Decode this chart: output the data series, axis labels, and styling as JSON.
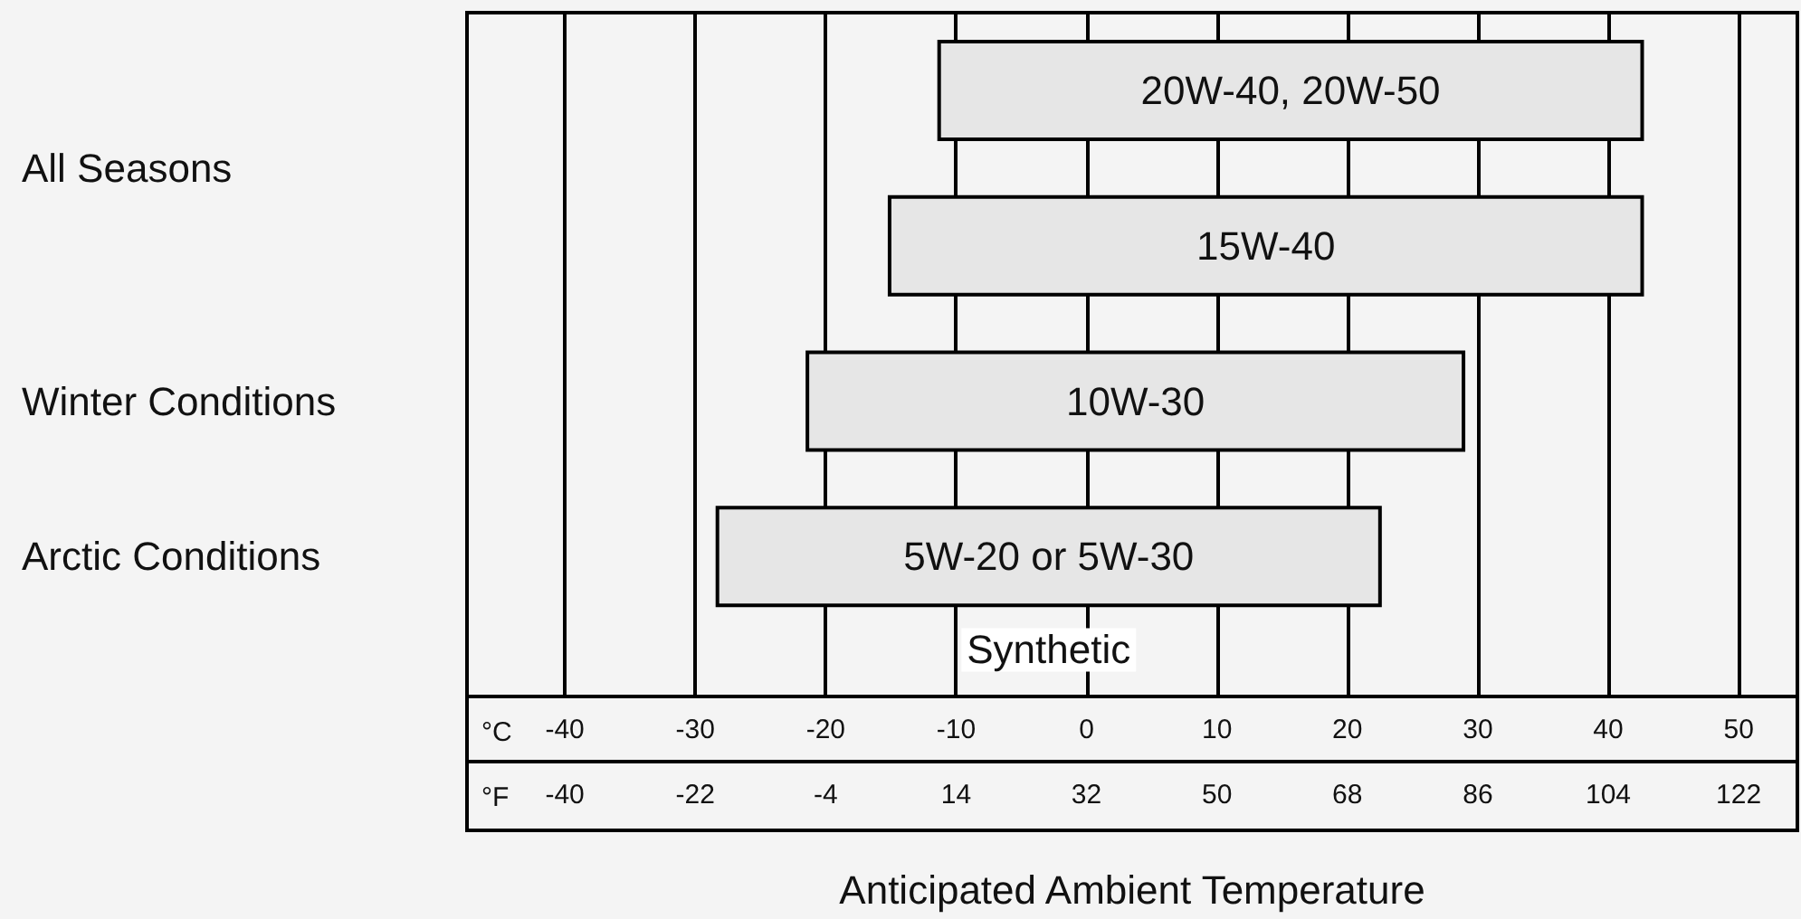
{
  "chart_data": {
    "type": "bar",
    "orientation": "horizontal",
    "xlabel": "Anticipated Ambient Temperature",
    "categories": [
      "20W-40, 20W-50",
      "15W-40",
      "10W-30",
      "5W-20 or 5W-30"
    ],
    "values": [
      53.9,
      57.7,
      50.3,
      50.8
    ],
    "base": [
      -11.3,
      -15.1,
      -21.4,
      -28.3
    ],
    "color": "#e6e6e6",
    "xlim": [
      -47.5,
      54.5
    ],
    "xticks": [
      -40,
      -30,
      -20,
      -10,
      0,
      10,
      20,
      30,
      40,
      50
    ],
    "x2lim": [
      -53.5,
      130.1
    ],
    "x2ticks": [
      -40,
      -22,
      -4,
      14,
      32,
      50,
      68,
      86,
      104,
      122
    ],
    "grid": "x",
    "tick_labels": "x",
    "annotations": [
      "All Seasons",
      "Winter Conditions",
      "Arctic Conditions",
      "Synthetic",
      "°C",
      "°F"
    ]
  }
}
